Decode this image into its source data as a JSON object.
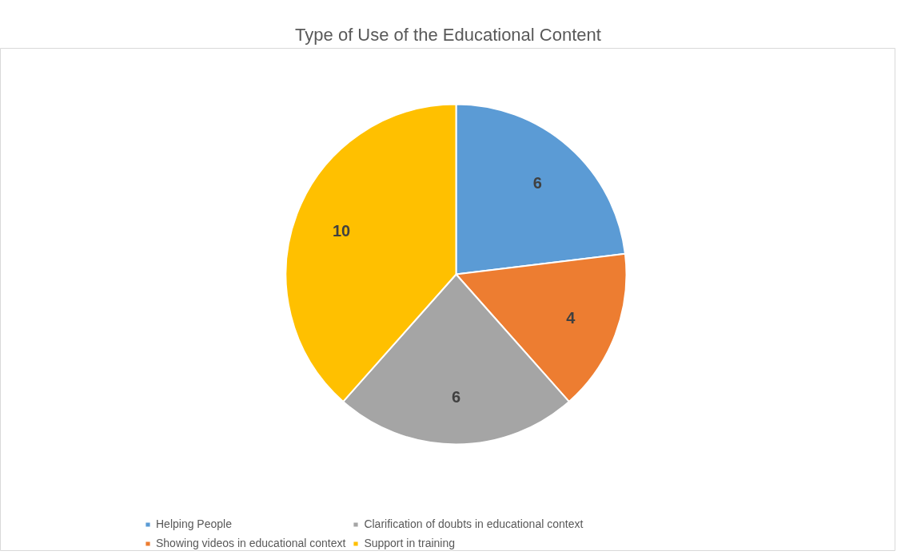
{
  "chart_data": {
    "type": "pie",
    "title": "Type of Use of the Educational Content",
    "categories": [
      "Helping People",
      "Showing videos in educational context",
      "Clarification of doubts in educational context",
      "Support in training"
    ],
    "values": [
      6,
      4,
      6,
      10
    ],
    "colors": [
      "#5b9bd5",
      "#ed7d31",
      "#a5a5a5",
      "#ffc000"
    ],
    "data_labels": true,
    "legend": "bottom"
  }
}
